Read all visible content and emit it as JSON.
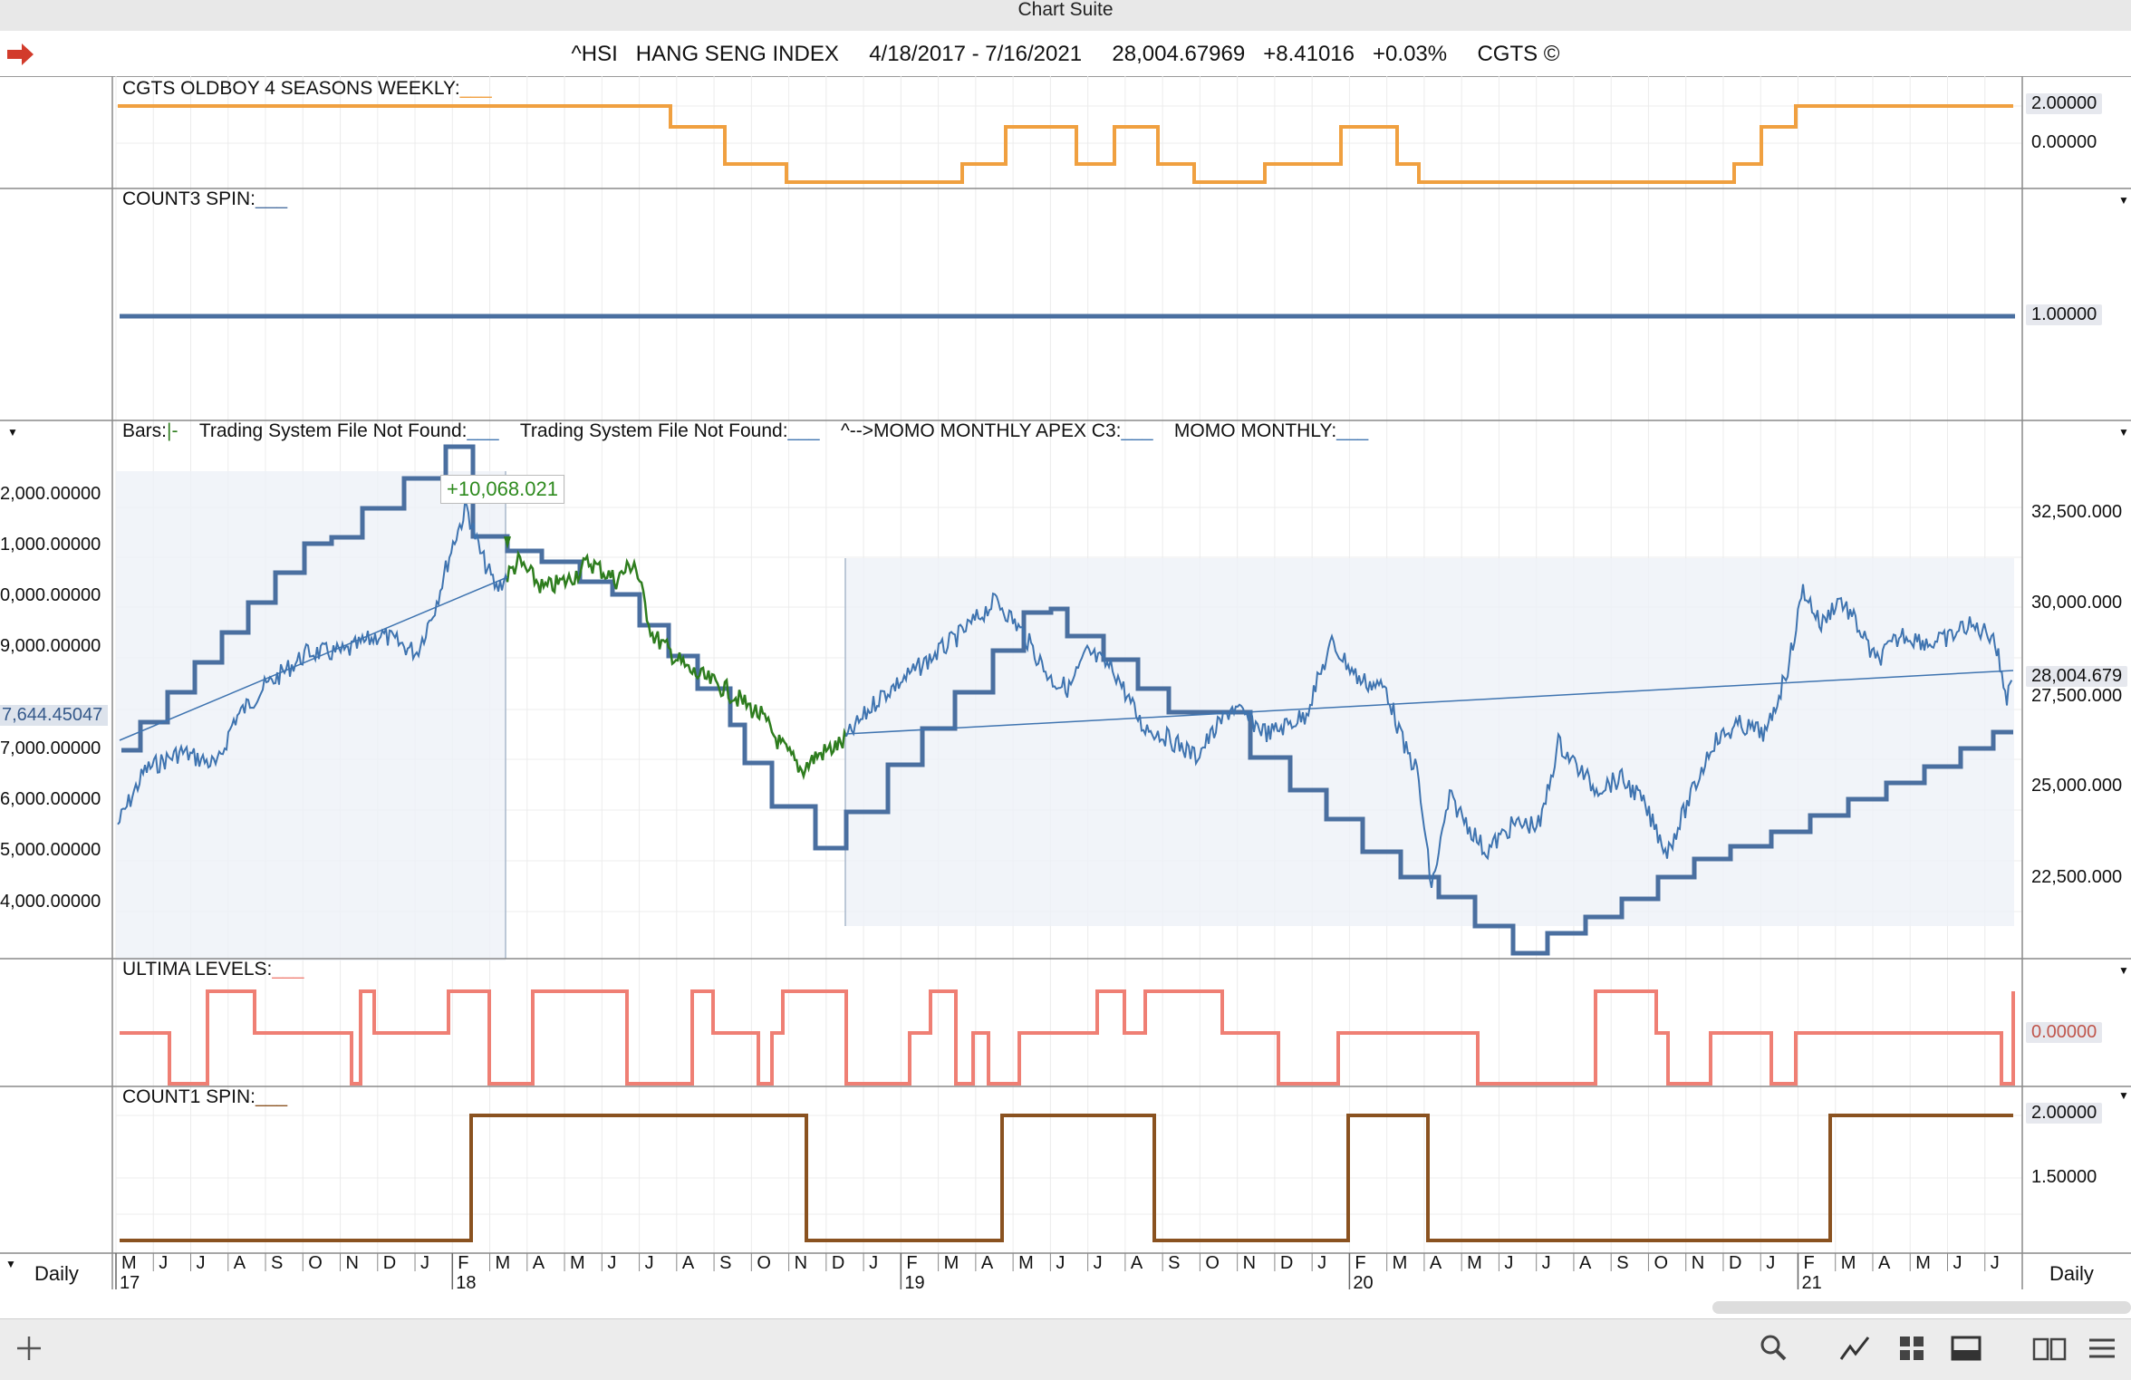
{
  "window": {
    "title": "Chart Suite"
  },
  "header": {
    "symbol": "^HSI",
    "name": "HANG SENG INDEX",
    "range": "4/18/2017 - 7/16/2021",
    "last": "28,004.67969",
    "change": "+8.41016",
    "pct": "+0.03%",
    "brand": "CGTS ©"
  },
  "panes": {
    "p1": {
      "label": "CGTS OLDBOY 4 SEASONS WEEKLY:",
      "v1": "2.00000",
      "v2": "0.00000",
      "color": "#f0a040"
    },
    "p2": {
      "label": "COUNT3 SPIN:",
      "v1": "1.00000",
      "color": "#4a6fa0"
    },
    "p3": {
      "legend": {
        "bars": "Bars:",
        "ts1": "Trading System File Not Found:",
        "ts2": "Trading System File Not Found:",
        "apex": "^-->MOMO MONTHLY APEX C3:",
        "momo": "MOMO MONTHLY:"
      },
      "left_axis": [
        "2,000.00000",
        "1,000.00000",
        "0,000.00000",
        "9,000.00000",
        "7,000.00000",
        "6,000.00000",
        "5,000.00000",
        "4,000.00000"
      ],
      "left_badge": "7,644.45047",
      "right_axis": [
        "32,500.000",
        "30,000.000",
        "27,500.000",
        "25,000.000",
        "22,500.000"
      ],
      "last_badge": "28,004.679",
      "annotation": "+10,068.021",
      "colors": {
        "price": "#3f74b0",
        "up": "#2e7d1e",
        "step": "#4a6fa0"
      }
    },
    "p4": {
      "label": "ULTIMA LEVELS:",
      "v1": "0.00000",
      "color": "#ef7f74"
    },
    "p5": {
      "label": "COUNT1 SPIN:",
      "v1": "2.00000",
      "v2": "1.50000",
      "color": "#8a5220"
    }
  },
  "axis": {
    "months": [
      "M",
      "J",
      "J",
      "A",
      "S",
      "O",
      "N",
      "D",
      "J",
      "F",
      "M",
      "A",
      "M",
      "J",
      "J",
      "A",
      "S",
      "O",
      "N",
      "D",
      "J",
      "F",
      "M",
      "A",
      "M",
      "J",
      "J",
      "A",
      "S",
      "O",
      "N",
      "D",
      "J",
      "F",
      "M",
      "A",
      "M",
      "J",
      "J",
      "A",
      "S",
      "O",
      "N",
      "D",
      "J",
      "F",
      "M",
      "A",
      "M",
      "J",
      "J"
    ],
    "years": [
      "17",
      "18",
      "19",
      "20",
      "21"
    ],
    "period_left": "Daily",
    "period_right": "Daily"
  },
  "toolbar": {
    "icons": [
      "add-icon",
      "search-icon",
      "line-chart-icon",
      "grid-icon",
      "panel-icon",
      "book-icon",
      "menu-icon"
    ]
  }
}
